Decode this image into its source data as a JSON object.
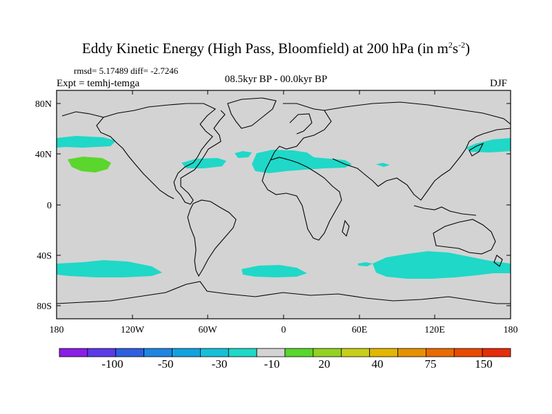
{
  "title": {
    "main": "Eddy Kinetic Energy (High Pass, Bloomfield) at 200 hPa (in m",
    "exp1": "2",
    "mid": "s",
    "exp2": "-2",
    "close": ")"
  },
  "stats": "rmsd= 5.17489 diff= -2.7246",
  "expt": "Expt = temhj-temga",
  "period": "08.5kyr BP - 00.0kyr BP",
  "season": "DJF",
  "axes": {
    "lat_ticks": [
      "80N",
      "40N",
      "0",
      "40S",
      "80S"
    ],
    "lon_ticks": [
      "180",
      "120W",
      "60W",
      "0",
      "60E",
      "120E",
      "180"
    ]
  },
  "colorbar": {
    "labels": [
      "-100",
      "-50",
      "-30",
      "-10",
      "20",
      "40",
      "75",
      "150"
    ],
    "colors": [
      "#8a1ee6",
      "#5a3be6",
      "#2e5fe0",
      "#1f85e0",
      "#12a2e0",
      "#16c0d8",
      "#1fd8c8",
      "#d3d3d3",
      "#5ad62c",
      "#93d222",
      "#c7cf18",
      "#e3b600",
      "#e59100",
      "#e86a00",
      "#e84a00",
      "#e52c0c"
    ]
  },
  "colors": {
    "land_bg": "#d3d3d3",
    "positive": "#1fd8c8",
    "strong_positive": "#5ad62c"
  }
}
